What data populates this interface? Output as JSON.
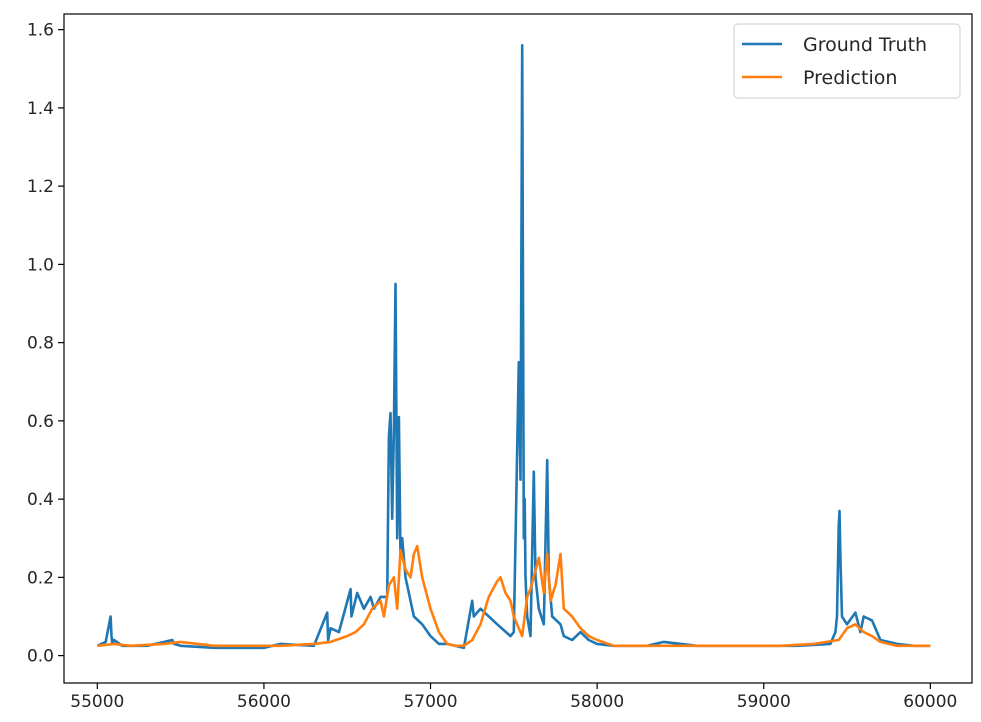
{
  "chart_data": {
    "type": "line",
    "title": "",
    "xlabel": "",
    "ylabel": "",
    "xlim": [
      54800,
      60250
    ],
    "ylim": [
      -0.07,
      1.64
    ],
    "x_ticks": [
      55000,
      56000,
      57000,
      58000,
      59000,
      60000
    ],
    "x_tick_labels": [
      "55000",
      "56000",
      "57000",
      "58000",
      "59000",
      "60000"
    ],
    "y_ticks": [
      0.0,
      0.2,
      0.4,
      0.6,
      0.8,
      1.0,
      1.2,
      1.4,
      1.6
    ],
    "y_tick_labels": [
      "0.0",
      "0.2",
      "0.4",
      "0.6",
      "0.8",
      "1.0",
      "1.2",
      "1.4",
      "1.6"
    ],
    "grid": false,
    "legend_position": "top-right",
    "colors": {
      "ground_truth": "#1f77b4",
      "prediction": "#ff7f0e"
    },
    "series": [
      {
        "name": "Ground Truth",
        "color": "#1f77b4",
        "x": [
          55000,
          55050,
          55080,
          55085,
          55090,
          55100,
          55150,
          55300,
          55450,
          55460,
          55500,
          55700,
          56000,
          56100,
          56300,
          56380,
          56385,
          56400,
          56450,
          56520,
          56525,
          56560,
          56600,
          56640,
          56660,
          56700,
          56740,
          56750,
          56760,
          56770,
          56780,
          56790,
          56800,
          56810,
          56820,
          56830,
          56850,
          56900,
          56950,
          57000,
          57050,
          57100,
          57200,
          57250,
          57260,
          57300,
          57400,
          57480,
          57500,
          57530,
          57540,
          57550,
          57560,
          57565,
          57570,
          57580,
          57600,
          57620,
          57630,
          57650,
          57680,
          57700,
          57710,
          57730,
          57780,
          57800,
          57850,
          57900,
          57950,
          58000,
          58100,
          58200,
          58300,
          58400,
          58600,
          58800,
          59000,
          59200,
          59400,
          59430,
          59440,
          59450,
          59455,
          59460,
          59470,
          59500,
          59550,
          59580,
          59600,
          59650,
          59700,
          59800,
          59900,
          60000
        ],
        "y": [
          0.025,
          0.035,
          0.1,
          0.05,
          0.03,
          0.04,
          0.025,
          0.025,
          0.04,
          0.03,
          0.025,
          0.02,
          0.02,
          0.03,
          0.025,
          0.11,
          0.04,
          0.07,
          0.06,
          0.17,
          0.1,
          0.16,
          0.12,
          0.15,
          0.12,
          0.15,
          0.15,
          0.56,
          0.62,
          0.35,
          0.58,
          0.95,
          0.3,
          0.61,
          0.25,
          0.3,
          0.2,
          0.1,
          0.08,
          0.05,
          0.03,
          0.03,
          0.02,
          0.14,
          0.1,
          0.12,
          0.08,
          0.05,
          0.06,
          0.75,
          0.45,
          1.56,
          0.3,
          0.4,
          0.2,
          0.1,
          0.05,
          0.47,
          0.2,
          0.12,
          0.08,
          0.5,
          0.2,
          0.1,
          0.08,
          0.05,
          0.04,
          0.06,
          0.04,
          0.03,
          0.025,
          0.025,
          0.025,
          0.035,
          0.025,
          0.025,
          0.025,
          0.025,
          0.03,
          0.06,
          0.1,
          0.33,
          0.37,
          0.25,
          0.1,
          0.08,
          0.11,
          0.06,
          0.1,
          0.09,
          0.04,
          0.03,
          0.025,
          0.025
        ]
      },
      {
        "name": "Prediction",
        "color": "#ff7f0e",
        "x": [
          55000,
          55100,
          55200,
          55400,
          55500,
          55700,
          55900,
          56100,
          56300,
          56400,
          56500,
          56550,
          56600,
          56650,
          56700,
          56720,
          56750,
          56780,
          56800,
          56820,
          56850,
          56880,
          56900,
          56920,
          56950,
          57000,
          57050,
          57100,
          57150,
          57200,
          57250,
          57300,
          57350,
          57400,
          57420,
          57450,
          57480,
          57500,
          57530,
          57550,
          57580,
          57600,
          57650,
          57680,
          57700,
          57720,
          57750,
          57780,
          57800,
          57850,
          57900,
          57950,
          58000,
          58100,
          58300,
          58500,
          58700,
          58900,
          59100,
          59300,
          59450,
          59500,
          59550,
          59600,
          59650,
          59700,
          59800,
          59900,
          60000
        ],
        "y": [
          0.025,
          0.03,
          0.025,
          0.03,
          0.035,
          0.025,
          0.025,
          0.025,
          0.03,
          0.035,
          0.05,
          0.06,
          0.08,
          0.12,
          0.14,
          0.1,
          0.18,
          0.2,
          0.12,
          0.27,
          0.22,
          0.2,
          0.26,
          0.28,
          0.2,
          0.12,
          0.06,
          0.03,
          0.025,
          0.025,
          0.04,
          0.08,
          0.15,
          0.19,
          0.2,
          0.16,
          0.14,
          0.1,
          0.07,
          0.05,
          0.15,
          0.17,
          0.25,
          0.16,
          0.26,
          0.14,
          0.18,
          0.26,
          0.12,
          0.1,
          0.07,
          0.05,
          0.04,
          0.025,
          0.025,
          0.025,
          0.025,
          0.025,
          0.025,
          0.03,
          0.04,
          0.07,
          0.08,
          0.06,
          0.05,
          0.035,
          0.025,
          0.025,
          0.025
        ]
      }
    ]
  }
}
